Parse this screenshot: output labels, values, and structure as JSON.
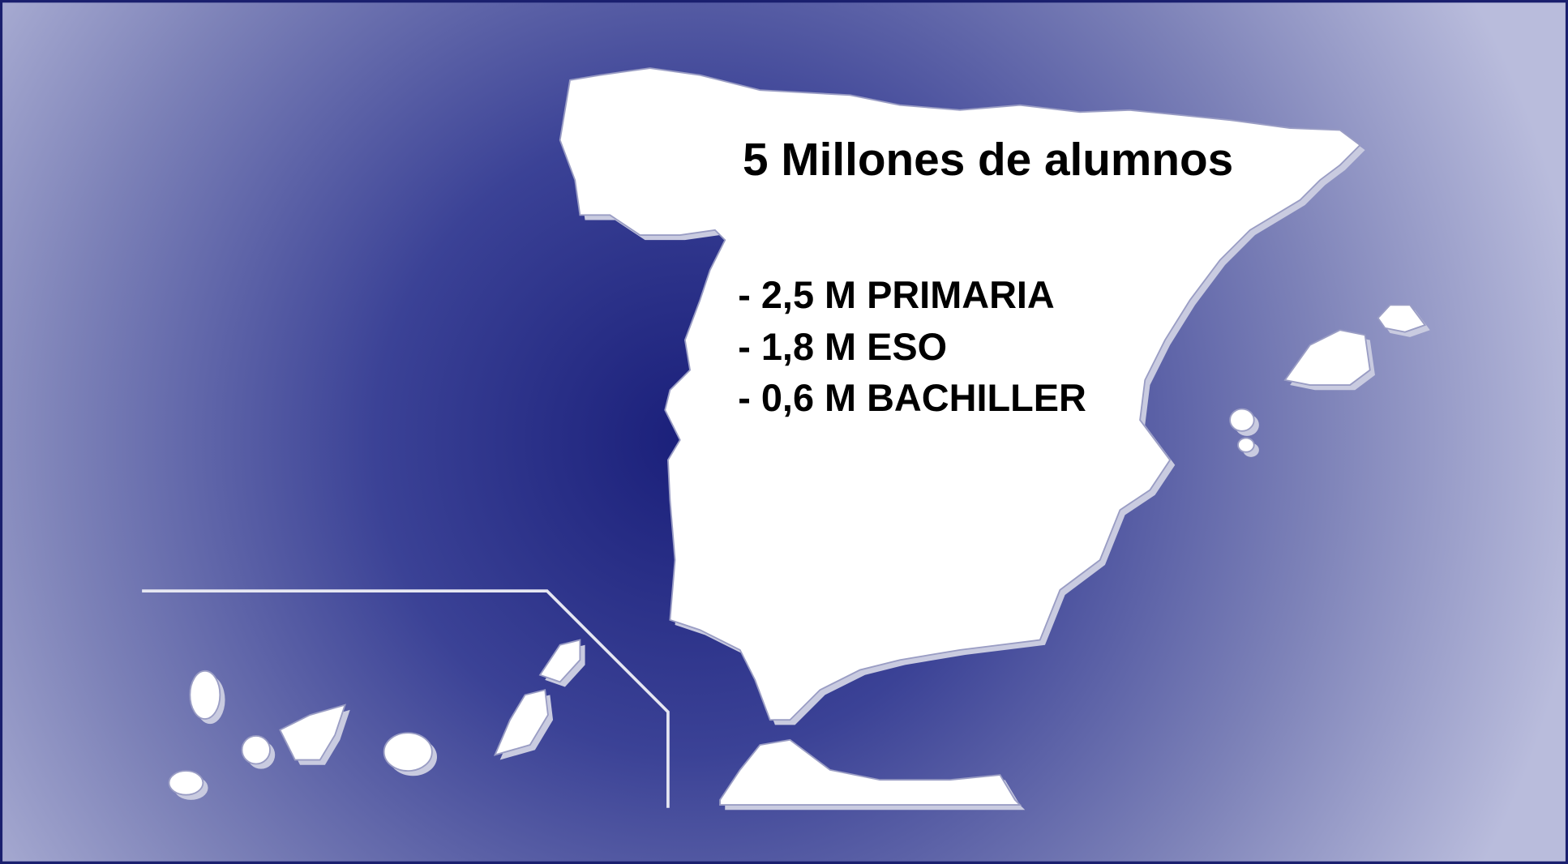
{
  "title": "5 Millones de alumnos",
  "items": [
    "- 2,5 M PRIMARIA",
    "- 1,8 M ESO",
    "- 0,6 M BACHILLER"
  ]
}
